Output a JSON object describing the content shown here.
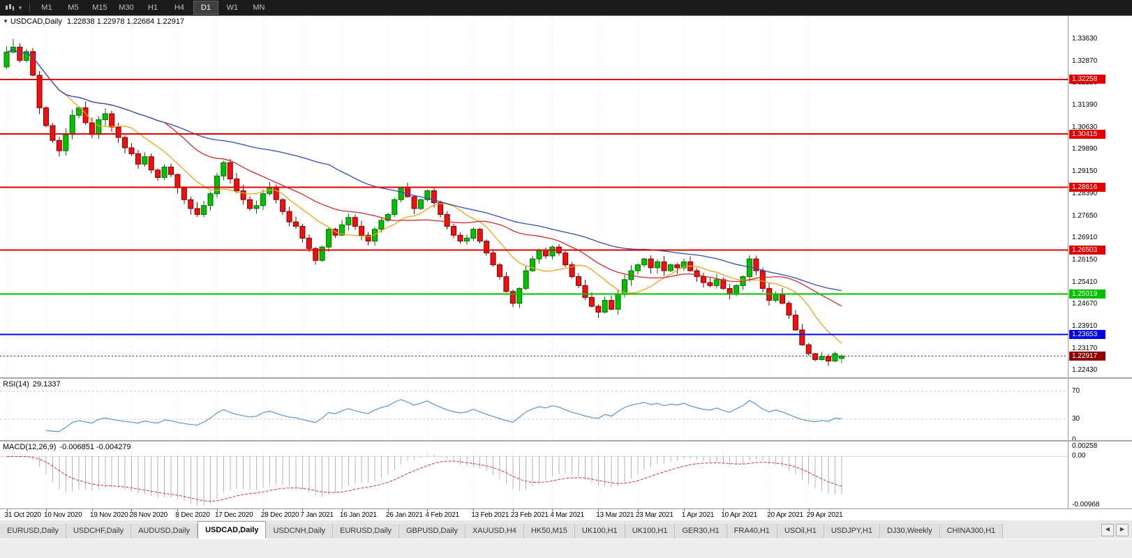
{
  "toolbar": {
    "timeframes": [
      "M1",
      "M5",
      "M15",
      "M30",
      "H1",
      "H4",
      "D1",
      "W1",
      "MN"
    ],
    "active_timeframe": "D1"
  },
  "chart": {
    "symbol_title": "USDCAD,Daily",
    "quote_line": "1.22838 1.22978 1.22684 1.22917",
    "scale_max": 1.344,
    "scale_min": 1.222,
    "price_axis_ticks": [
      "1.33630",
      "1.32870",
      "1.32150",
      "1.31390",
      "1.30630",
      "1.29890",
      "1.29150",
      "1.28390",
      "1.27650",
      "1.26910",
      "1.26150",
      "1.25410",
      "1.24670",
      "1.23910",
      "1.23170",
      "1.22430"
    ],
    "levels": [
      {
        "label": "1.32258",
        "value": 1.32258,
        "color": "#e00000"
      },
      {
        "label": "1.30415",
        "value": 1.30415,
        "color": "#e00000"
      },
      {
        "label": "1.28616",
        "value": 1.28616,
        "color": "#e00000"
      },
      {
        "label": "1.26503",
        "value": 1.26503,
        "color": "#e00000"
      },
      {
        "label": "1.25019",
        "value": 1.25019,
        "color": "#00c000"
      },
      {
        "label": "1.23653",
        "value": 1.23653,
        "color": "#0000e0"
      }
    ],
    "current_price": {
      "label": "1.22917",
      "value": 1.22917,
      "color": "#8b0000"
    },
    "date_axis": [
      "31 Oct 2020",
      "10 Nov 2020",
      "19 Nov 2020",
      "28 Nov 2020",
      "8 Dec 2020",
      "17 Dec 2020",
      "28 Dec 2020",
      "7 Jan 2021",
      "16 Jan 2021",
      "26 Jan 2021",
      "4 Feb 2021",
      "13 Feb 2021",
      "23 Feb 2021",
      "4 Mar 2021",
      "13 Mar 2021",
      "23 Mar 2021",
      "1 Apr 2021",
      "10 Apr 2021",
      "20 Apr 2021",
      "29 Apr 2021"
    ]
  },
  "rsi": {
    "name": "RSI(14)",
    "value_text": "29.1337",
    "axis_ticks": [
      "70",
      "30",
      "0"
    ],
    "scale_max": 88,
    "scale_min": 0,
    "line_color": "#5596d8"
  },
  "macd": {
    "name": "MACD(12,26,9)",
    "values_text": "-0.006851 -0.004279",
    "axis_ticks": [
      "0.00258",
      "0.00",
      "-0.00968"
    ],
    "scale_max": 0.003,
    "scale_min": -0.0104
  },
  "tabs": {
    "items": [
      "EURUSD,Daily",
      "USDCHF,Daily",
      "AUDUSD,Daily",
      "USDCAD,Daily",
      "USDCNH,Daily",
      "EURUSD,Daily",
      "GBPUSD,Daily",
      "XAUUSD,H4",
      "HK50,M15",
      "UK100,H1",
      "UK100,H1",
      "GER30,H1",
      "FRA40,H1",
      "USOil,H1",
      "USDJPY,H1",
      "DJ30,Weekly",
      "CHINA300,H1"
    ],
    "active_index": 3,
    "scroll_left": "◀",
    "scroll_right": "▶"
  },
  "chart_data": {
    "type": "candlestick",
    "symbol": "USDCAD",
    "timeframe": "Daily",
    "x_range": [
      "31 Oct 2020",
      "4 May 2021"
    ],
    "x_tick_labels": [
      "31 Oct 2020",
      "10 Nov 2020",
      "19 Nov 2020",
      "28 Nov 2020",
      "8 Dec 2020",
      "17 Dec 2020",
      "28 Dec 2020",
      "7 Jan 2021",
      "16 Jan 2021",
      "26 Jan 2021",
      "4 Feb 2021",
      "13 Feb 2021",
      "23 Feb 2021",
      "4 Mar 2021",
      "13 Mar 2021",
      "23 Mar 2021",
      "1 Apr 2021",
      "10 Apr 2021",
      "20 Apr 2021",
      "29 Apr 2021"
    ],
    "price_scale": {
      "min": 1.222,
      "max": 1.344
    },
    "closes": [
      1.3318,
      1.3335,
      1.329,
      1.332,
      1.324,
      1.313,
      1.307,
      1.302,
      1.2985,
      1.304,
      1.3105,
      1.313,
      1.308,
      1.304,
      1.309,
      1.311,
      1.3065,
      1.303,
      1.2995,
      1.2975,
      1.294,
      1.2965,
      1.292,
      1.2895,
      1.293,
      1.2905,
      1.286,
      1.282,
      1.279,
      1.277,
      1.28,
      1.284,
      1.29,
      1.2945,
      1.289,
      1.285,
      1.282,
      1.279,
      1.28,
      1.284,
      1.286,
      1.282,
      1.278,
      1.2745,
      1.273,
      1.269,
      1.2655,
      1.2615,
      1.266,
      1.272,
      1.27,
      1.2735,
      1.276,
      1.273,
      1.27,
      1.268,
      1.272,
      1.275,
      1.277,
      1.282,
      1.286,
      1.283,
      1.279,
      1.282,
      1.285,
      1.281,
      1.277,
      1.273,
      1.27,
      1.268,
      1.269,
      1.272,
      1.268,
      1.264,
      1.26,
      1.256,
      1.251,
      1.247,
      1.252,
      1.258,
      1.262,
      1.265,
      1.263,
      1.266,
      1.264,
      1.26,
      1.256,
      1.253,
      1.249,
      1.246,
      1.244,
      1.248,
      1.245,
      1.25,
      1.255,
      1.258,
      1.26,
      1.262,
      1.259,
      1.261,
      1.258,
      1.26,
      1.259,
      1.261,
      1.258,
      1.256,
      1.254,
      1.253,
      1.255,
      1.252,
      1.25,
      1.253,
      1.256,
      1.262,
      1.258,
      1.252,
      1.248,
      1.25,
      1.247,
      1.243,
      1.238,
      1.233,
      1.23,
      1.228,
      1.229,
      1.2275,
      1.23,
      1.22917
    ],
    "last_candle": {
      "open": 1.22838,
      "high": 1.22978,
      "low": 1.22684,
      "close": 1.22917
    },
    "colors": {
      "up": "#00c000",
      "up_stroke": "#006e00",
      "down": "#f01010",
      "down_stroke": "#7a0000"
    },
    "overlays": {
      "levels": [
        1.32258,
        1.30415,
        1.28616,
        1.26503,
        1.25019,
        1.23653
      ],
      "moving_averages": [
        {
          "period": 10,
          "color": "#efa21a"
        },
        {
          "period": 25,
          "color": "#d42a2a"
        },
        {
          "period": 50,
          "color": "#2f4dba"
        }
      ]
    },
    "indicators": [
      {
        "name": "RSI",
        "period": 14,
        "current_value": 29.1337,
        "levels": [
          70,
          30,
          0
        ]
      },
      {
        "name": "MACD",
        "params": [
          12,
          26,
          9
        ],
        "current_values": [
          -0.006851,
          -0.004279
        ],
        "axis": [
          0.00258,
          0.0,
          -0.00968
        ]
      }
    ]
  }
}
